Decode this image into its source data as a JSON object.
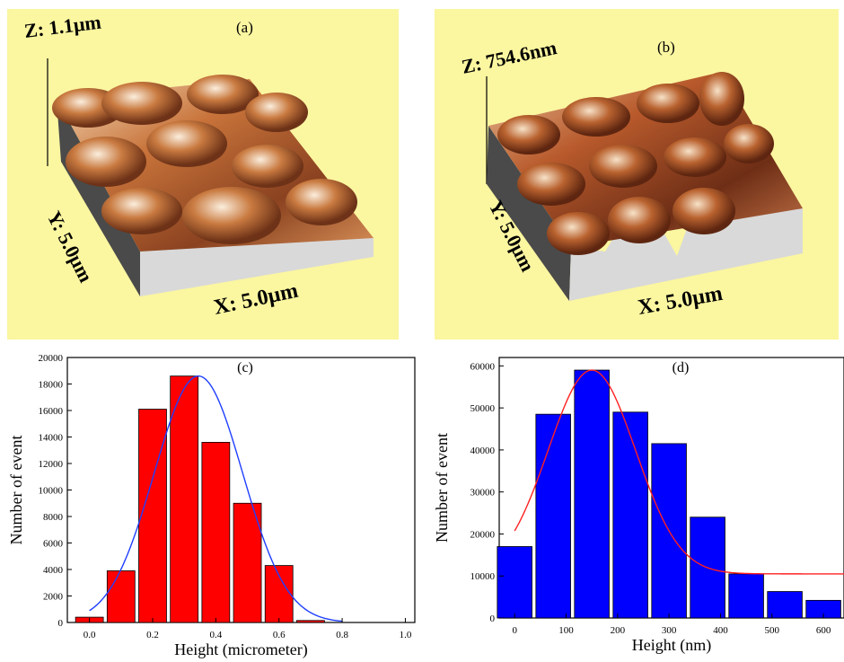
{
  "afm_a": {
    "panel_label": "(a)",
    "z_label": "Z: 1.1µm",
    "y_label": "Y: 5.0µm",
    "x_label": "X: 5.0µm",
    "colors": {
      "background": "#fbf6a0",
      "surface_dark": "#7a3a1a",
      "surface_mid": "#c46a34",
      "surface_light": "#f3d9b3",
      "wall": "#5a5a5a"
    }
  },
  "afm_b": {
    "panel_label": "(b)",
    "z_label": "Z: 754.6nm",
    "y_label": "Y: 5.0µm",
    "x_label": "X: 5.0µm",
    "colors": {
      "background": "#fbf6a0",
      "surface_dark": "#6e2e16",
      "surface_mid": "#b85a2c",
      "surface_light": "#f0cfae",
      "wall": "#5a5a5a"
    }
  },
  "chart_data": [
    {
      "type": "bar",
      "panel_label": "(c)",
      "xlabel": "Height (micrometer)",
      "ylabel": "Number of event",
      "x": [
        0.0,
        0.1,
        0.2,
        0.3,
        0.4,
        0.5,
        0.6,
        0.7
      ],
      "values": [
        400,
        3900,
        16100,
        18600,
        13600,
        9000,
        4300,
        150
      ],
      "xlim": [
        -0.07,
        1.03
      ],
      "ylim": [
        0,
        20000
      ],
      "xticks": [
        0.0,
        0.2,
        0.4,
        0.6,
        0.8,
        1.0
      ],
      "xtick_labels": [
        "0.0",
        "0.2",
        "0.4",
        "0.6",
        "0.8",
        "1.0"
      ],
      "yticks": [
        0,
        2000,
        4000,
        6000,
        8000,
        10000,
        12000,
        14000,
        16000,
        18000,
        20000
      ],
      "ytick_labels": [
        "0",
        "2000",
        "4000",
        "6000",
        "8000",
        "10000",
        "12000",
        "14000",
        "16000",
        "18000",
        "20000"
      ],
      "bar_color": "#ff0000",
      "fit": {
        "type": "gaussian",
        "center": 0.345,
        "amplitude": 18600,
        "sigma": 0.14,
        "offset": 0,
        "color": "#1f3fff"
      },
      "grid": false
    },
    {
      "type": "bar",
      "panel_label": "(d)",
      "xlabel": "Height (nm)",
      "ylabel": "Number of event",
      "x": [
        0,
        75,
        150,
        225,
        300,
        375,
        450,
        525,
        600
      ],
      "values": [
        17000,
        48500,
        59000,
        49000,
        41500,
        24000,
        10500,
        6300,
        4200
      ],
      "xlim": [
        -30,
        640
      ],
      "ylim": [
        0,
        62000
      ],
      "xticks": [
        0,
        100,
        200,
        300,
        400,
        500,
        600
      ],
      "xtick_labels": [
        "0",
        "100",
        "200",
        "300",
        "400",
        "500",
        "600"
      ],
      "yticks": [
        0,
        10000,
        20000,
        30000,
        40000,
        50000,
        60000
      ],
      "ytick_labels": [
        "0",
        "10000",
        "20000",
        "30000",
        "40000",
        "50000",
        "60000"
      ],
      "bar_color": "#0000ff",
      "fit": {
        "type": "gaussian",
        "center": 150,
        "amplitude": 48500,
        "sigma": 85,
        "offset": 10500,
        "color": "#ff2020"
      },
      "grid": false
    }
  ]
}
